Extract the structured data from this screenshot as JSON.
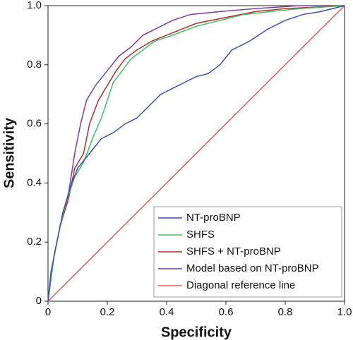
{
  "chart_data": {
    "type": "line",
    "x_label": "Specificity",
    "y_label": "Sensitivity",
    "xlim": [
      0,
      1
    ],
    "ylim": [
      0,
      1
    ],
    "xticks": [
      0,
      0.2,
      0.4,
      0.6,
      0.8,
      {
        "value": 1,
        "label": "1.0"
      }
    ],
    "yticks": [
      0,
      0.2,
      0.4,
      0.6,
      0.8,
      {
        "value": 1,
        "label": "1.0"
      }
    ],
    "legend": "lower right",
    "series": [
      {
        "name": "NT-proBNP",
        "color": "#3b4fb3",
        "x": [
          0,
          0.01,
          0.03,
          0.05,
          0.08,
          0.1,
          0.14,
          0.18,
          0.22,
          0.26,
          0.3,
          0.34,
          0.38,
          0.42,
          0.46,
          0.5,
          0.54,
          0.58,
          0.62,
          0.68,
          0.74,
          0.8,
          0.86,
          0.92,
          1
        ],
        "values": [
          0,
          0.1,
          0.2,
          0.3,
          0.4,
          0.45,
          0.5,
          0.55,
          0.57,
          0.6,
          0.62,
          0.66,
          0.7,
          0.72,
          0.74,
          0.76,
          0.77,
          0.8,
          0.85,
          0.88,
          0.92,
          0.95,
          0.97,
          0.98,
          1
        ]
      },
      {
        "name": "SHFS",
        "color": "#3fbf5f",
        "x": [
          0,
          0.02,
          0.04,
          0.06,
          0.09,
          0.12,
          0.15,
          0.18,
          0.2,
          0.22,
          0.25,
          0.28,
          0.32,
          0.36,
          0.42,
          0.5,
          0.58,
          0.66,
          0.75,
          0.85,
          1
        ],
        "values": [
          0,
          0.15,
          0.25,
          0.33,
          0.42,
          0.47,
          0.55,
          0.62,
          0.68,
          0.74,
          0.78,
          0.82,
          0.85,
          0.88,
          0.9,
          0.93,
          0.95,
          0.97,
          0.98,
          0.99,
          1
        ]
      },
      {
        "name": "SHFS + NT-proBNP",
        "color": "#b22d2d",
        "x": [
          0,
          0.02,
          0.04,
          0.07,
          0.09,
          0.12,
          0.14,
          0.17,
          0.2,
          0.23,
          0.26,
          0.3,
          0.35,
          0.4,
          0.45,
          0.5,
          0.6,
          0.7,
          0.8,
          1
        ],
        "values": [
          0,
          0.15,
          0.25,
          0.35,
          0.45,
          0.5,
          0.6,
          0.68,
          0.73,
          0.78,
          0.82,
          0.85,
          0.88,
          0.9,
          0.92,
          0.94,
          0.96,
          0.98,
          0.99,
          1
        ]
      },
      {
        "name": "Model based on NT-proBNP",
        "color": "#7b3b9f",
        "x": [
          0,
          0.02,
          0.04,
          0.07,
          0.09,
          0.11,
          0.13,
          0.16,
          0.2,
          0.24,
          0.28,
          0.32,
          0.36,
          0.42,
          0.48,
          0.58,
          0.7,
          0.85,
          1
        ],
        "values": [
          0,
          0.15,
          0.25,
          0.37,
          0.5,
          0.6,
          0.68,
          0.73,
          0.78,
          0.83,
          0.86,
          0.9,
          0.92,
          0.95,
          0.97,
          0.98,
          0.99,
          1,
          1
        ]
      },
      {
        "name": "Diagonal reference line",
        "color": "#e85a5a",
        "x": [
          0,
          1
        ],
        "values": [
          0,
          1
        ]
      }
    ]
  }
}
